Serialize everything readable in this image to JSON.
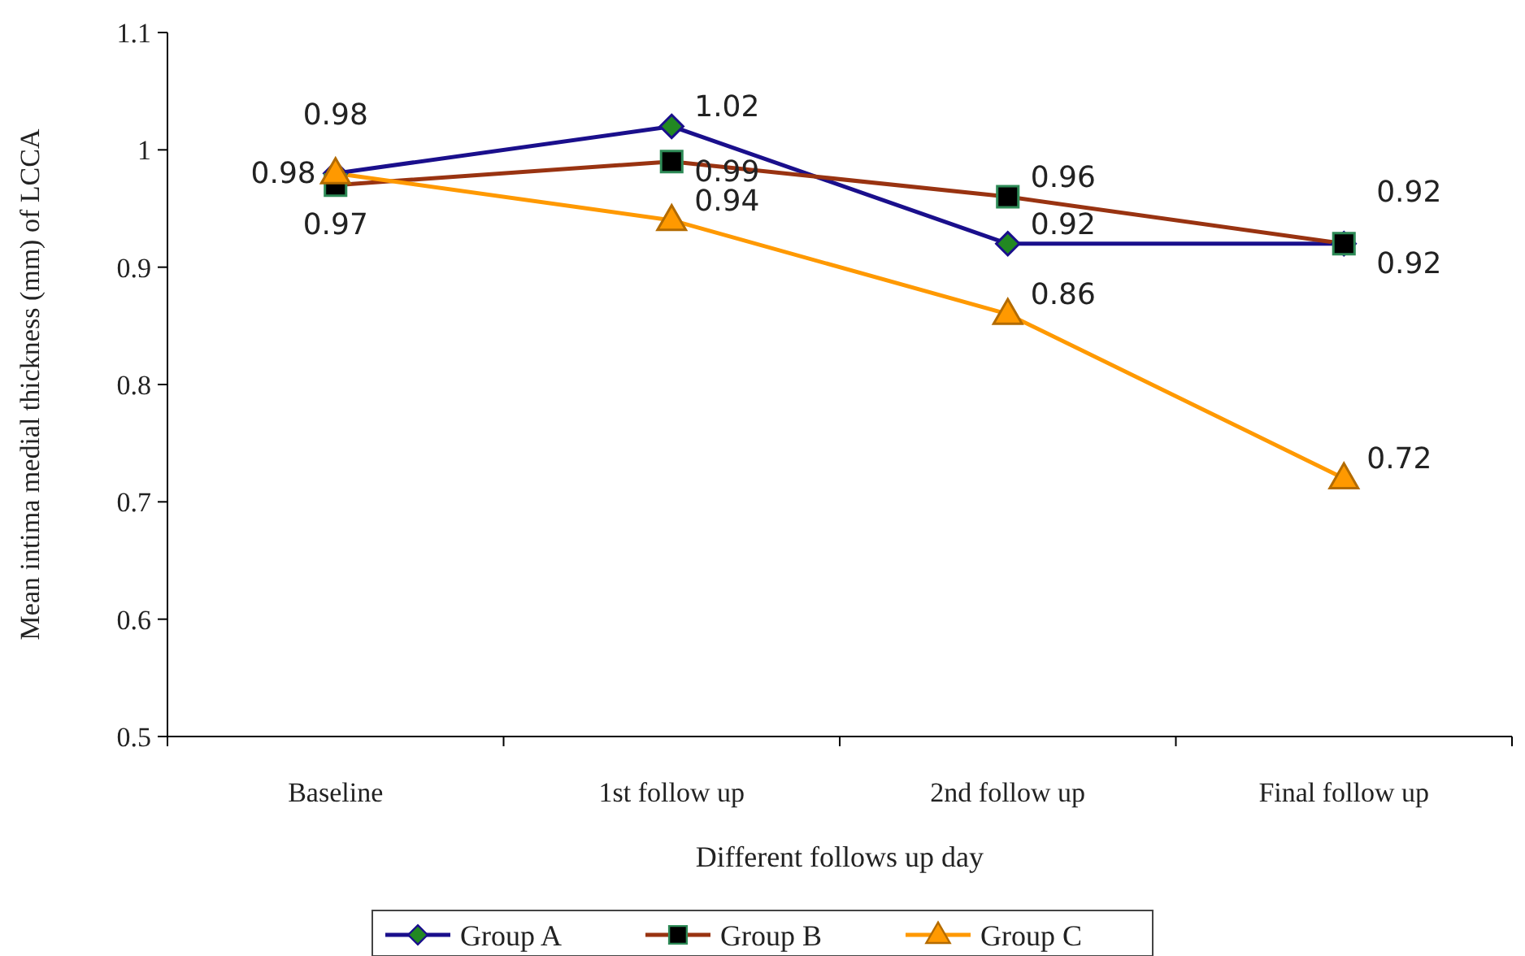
{
  "chart_data": {
    "type": "line",
    "xlabel": "Different follows up day",
    "ylabel": "Mean intima medial thickness (mm) of LCCA",
    "categories": [
      "Baseline",
      "1st follow up",
      "2nd follow up",
      "Final follow up"
    ],
    "series": [
      {
        "name": "Group A",
        "color": "#1a0f8c",
        "marker": "diamond",
        "values": [
          0.98,
          1.02,
          0.92,
          0.92
        ]
      },
      {
        "name": "Group B",
        "color": "#993311",
        "marker": "square",
        "values": [
          0.97,
          0.99,
          0.96,
          0.92
        ]
      },
      {
        "name": "Group C",
        "color": "#ff9900",
        "marker": "triangle",
        "values": [
          0.98,
          0.94,
          0.86,
          0.72
        ]
      }
    ],
    "ylim": [
      0.5,
      1.1
    ],
    "yticks": [
      {
        "value": 0.5,
        "label": "0.5"
      },
      {
        "value": 0.6,
        "label": "0.6"
      },
      {
        "value": 0.7,
        "label": "0.7"
      },
      {
        "value": 0.8,
        "label": "0.8"
      },
      {
        "value": 0.9,
        "label": "0.9"
      },
      {
        "value": 1.0,
        "label": "1"
      },
      {
        "value": 1.1,
        "label": "1.1"
      }
    ],
    "data_labels": true,
    "legend": "bottom",
    "grid": false,
    "line_style": "solid"
  }
}
